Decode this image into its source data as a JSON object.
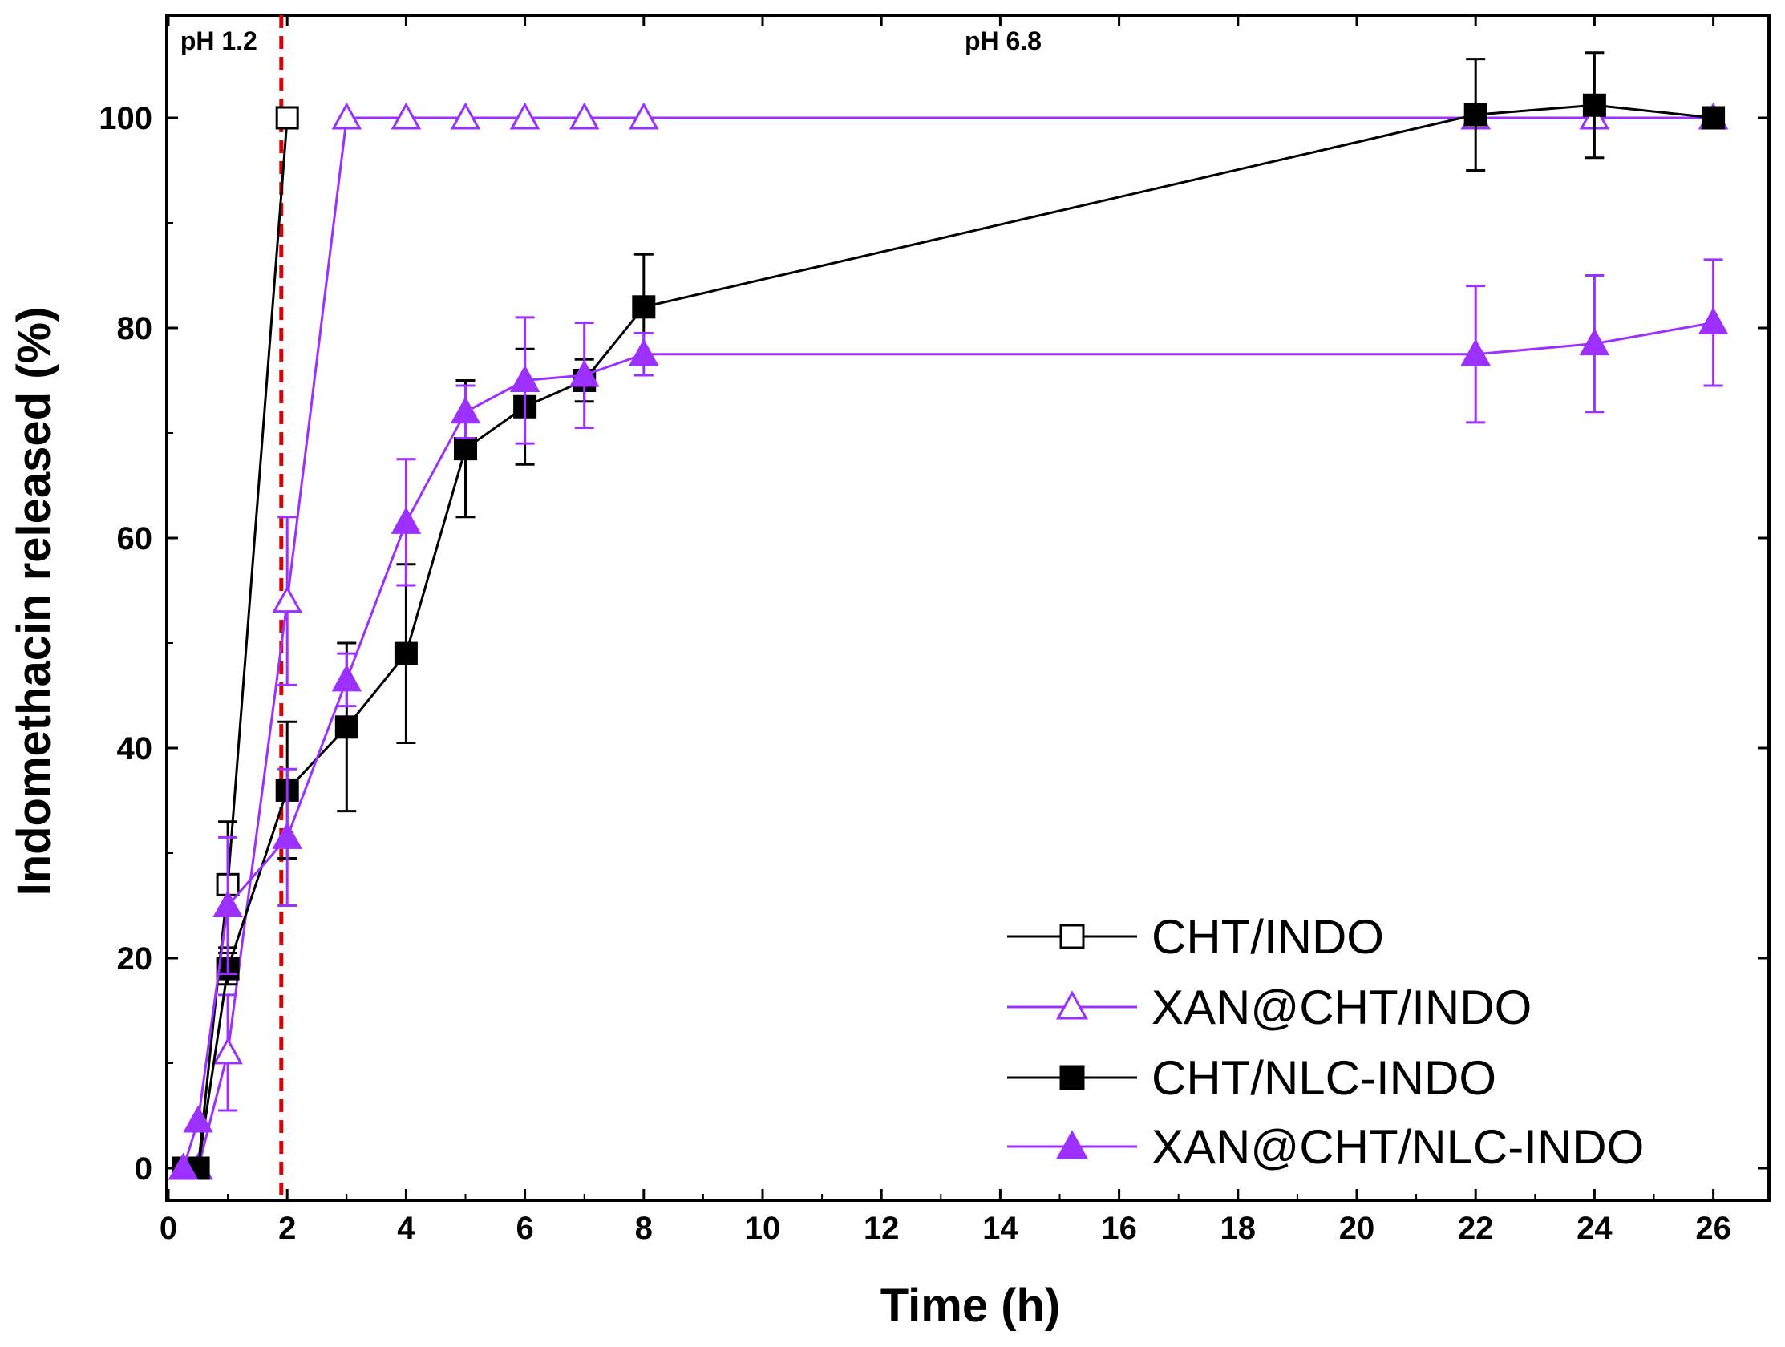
{
  "chart_data": {
    "type": "line",
    "title": "",
    "xlabel": "Time (h)",
    "ylabel": "Indomethacin released (%)",
    "xlim": [
      0,
      27
    ],
    "ylim": [
      -5,
      110
    ],
    "x_ticks": [
      0,
      2,
      4,
      6,
      8,
      10,
      12,
      14,
      16,
      18,
      20,
      22,
      24,
      26
    ],
    "y_ticks": [
      0,
      20,
      40,
      60,
      80,
      100
    ],
    "grid": false,
    "legend_position": "bottom-right",
    "annotations": [
      {
        "text": "pH 1.2",
        "x": 0.2,
        "y": 106.5
      },
      {
        "text": "pH 6.8",
        "x": 13.4,
        "y": 106.5
      }
    ],
    "reference_line": {
      "x": 1.9,
      "style": "dashed",
      "color": "#e00000"
    },
    "series": [
      {
        "name": "CHT/INDO",
        "marker": "square-open",
        "color": "#000000",
        "x": [
          0.25,
          0.5,
          1,
          2
        ],
        "y": [
          0,
          0,
          27,
          100
        ],
        "err": [
          0,
          0,
          6,
          0
        ]
      },
      {
        "name": "XAN@CHT/INDO",
        "marker": "triangle-open",
        "color": "#9b30ff",
        "x": [
          0.25,
          0.5,
          1,
          2,
          3,
          4,
          5,
          6,
          7,
          8,
          22,
          24,
          26
        ],
        "y": [
          0,
          0,
          11,
          54,
          100,
          100,
          100,
          100,
          100,
          100,
          100,
          100,
          100
        ],
        "err": [
          0,
          0,
          5.5,
          8,
          0,
          0,
          0,
          0,
          0,
          0,
          0,
          0,
          0
        ]
      },
      {
        "name": "CHT/NLC-INDO",
        "marker": "square-filled",
        "color": "#000000",
        "x": [
          0.25,
          0.5,
          1,
          2,
          3,
          4,
          5,
          6,
          7,
          8,
          22,
          24,
          26
        ],
        "y": [
          0,
          0,
          19,
          36,
          42,
          49,
          68.5,
          72.5,
          75,
          82,
          100.3,
          101.2,
          100
        ],
        "err": [
          0,
          0,
          1.5,
          6.5,
          8,
          8.5,
          6.5,
          5.5,
          2,
          5,
          5.3,
          5,
          0
        ]
      },
      {
        "name": "XAN@CHT/NLC-INDO",
        "marker": "triangle-filled",
        "color": "#9b30ff",
        "x": [
          0.25,
          0.5,
          1,
          2,
          3,
          4,
          5,
          6,
          7,
          8,
          22,
          24,
          26
        ],
        "y": [
          0,
          4.5,
          25,
          31.5,
          46.5,
          61.5,
          72,
          75,
          75.5,
          77.5,
          77.5,
          78.5,
          80.5
        ],
        "err": [
          0,
          0,
          6.5,
          6.5,
          2.5,
          6,
          2.5,
          6,
          5,
          2,
          6.5,
          6.5,
          6
        ]
      }
    ]
  }
}
